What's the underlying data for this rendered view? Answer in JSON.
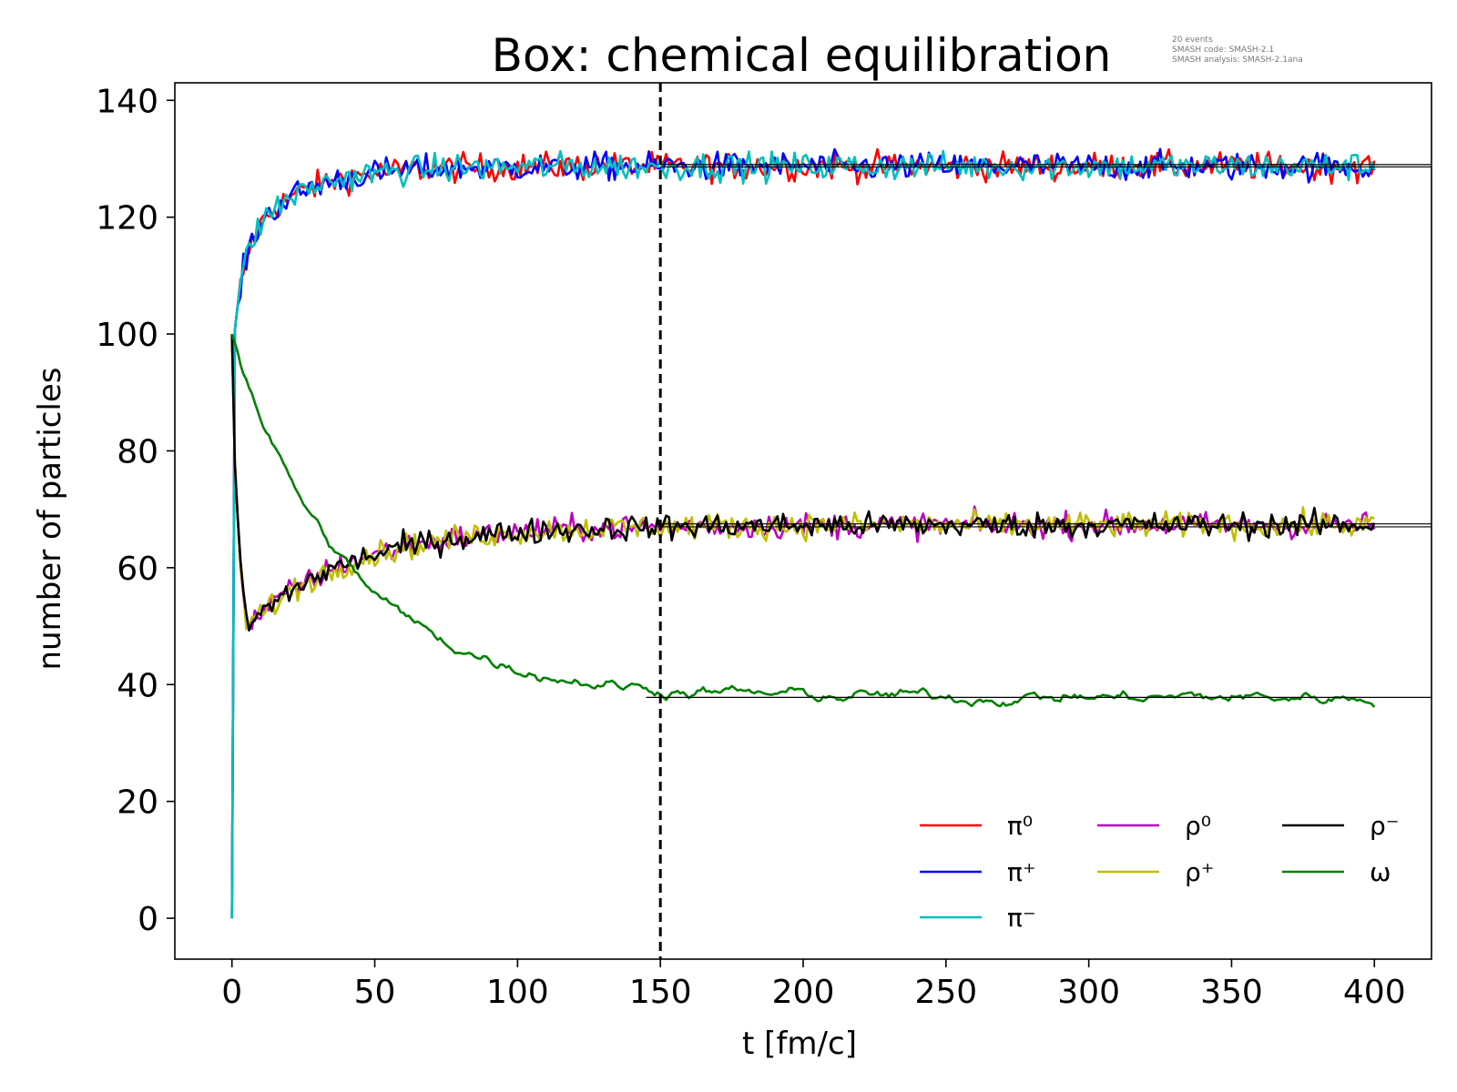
{
  "chart_data": {
    "type": "line",
    "title": "Box: chemical equilibration",
    "annotation_lines": [
      "20 events",
      "SMASH code:      SMASH-2.1",
      "SMASH analysis:  SMASH-2.1ana"
    ],
    "xlabel": "t [fm/c]",
    "ylabel": "number of particles",
    "xlim": [
      -20,
      420
    ],
    "ylim": [
      -7,
      143
    ],
    "xticks": [
      0,
      50,
      100,
      150,
      200,
      250,
      300,
      350,
      400
    ],
    "yticks": [
      0,
      20,
      40,
      60,
      80,
      100,
      120,
      140
    ],
    "grid": false,
    "legend_position": "lower-right",
    "vertical_marker_x": 150,
    "series": [
      {
        "name": "π⁰",
        "color": "#ff0000",
        "kind": "pion",
        "initial": 0,
        "final": 128.7
      },
      {
        "name": "π⁺",
        "color": "#0000ff",
        "kind": "pion",
        "initial": 0,
        "final": 128.7
      },
      {
        "name": "π⁻",
        "color": "#00bfbf",
        "kind": "pion",
        "initial": 0,
        "final": 128.7
      },
      {
        "name": "ρ⁰",
        "color": "#bf00bf",
        "kind": "rho",
        "initial": 100,
        "final": 67.3
      },
      {
        "name": "ρ⁺",
        "color": "#bfbf00",
        "kind": "rho",
        "initial": 100,
        "final": 67.3
      },
      {
        "name": "ρ⁻",
        "color": "#000000",
        "kind": "rho",
        "initial": 100,
        "final": 67.3
      },
      {
        "name": "ω",
        "color": "#008000",
        "kind": "omega",
        "initial": 100,
        "final": 37.8
      }
    ],
    "equilibrium_lines": [
      {
        "y": 129.0,
        "from": 150,
        "to": 420
      },
      {
        "y": 128.6,
        "from": 150,
        "to": 420
      },
      {
        "y": 67.5,
        "from": 150,
        "to": 420
      },
      {
        "y": 67.0,
        "from": 150,
        "to": 420
      },
      {
        "y": 37.8,
        "from": 145,
        "to": 420
      }
    ]
  }
}
